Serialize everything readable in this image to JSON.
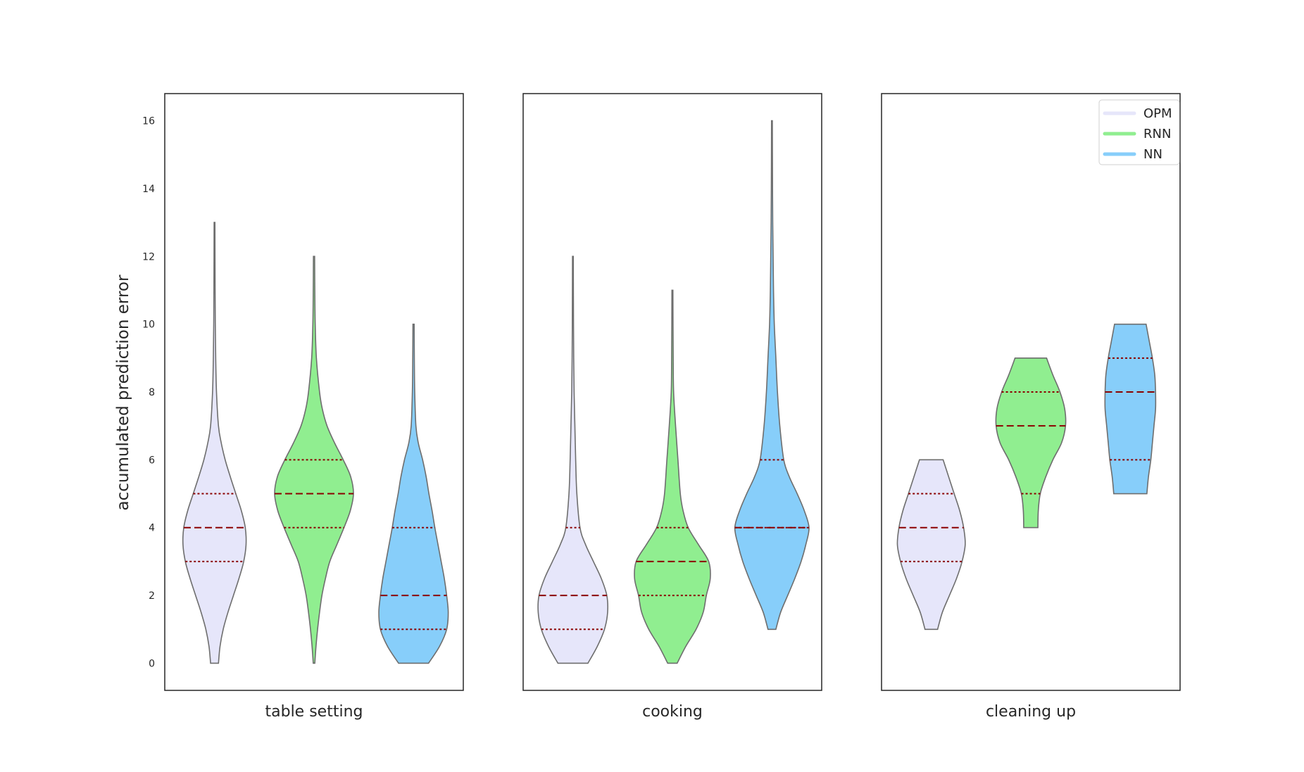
{
  "chart_data": {
    "type": "violin",
    "ylabel": "accumulated prediction error",
    "ylim": [
      -0.8,
      16.8
    ],
    "y_ticks": [
      0,
      2,
      4,
      6,
      8,
      10,
      12,
      14,
      16
    ],
    "grid": false,
    "legend": {
      "placement": "top-right",
      "entries": [
        {
          "name": "OPM",
          "color": "#e6e6fa"
        },
        {
          "name": "RNN",
          "color": "#90ee90"
        },
        {
          "name": "NN",
          "color": "#87cefa"
        }
      ]
    },
    "colors": {
      "OPM": "#e6e6fa",
      "RNN": "#90ee90",
      "NN": "#87cefa",
      "outline": "#6e6e6e",
      "quartile_lines": "#8b0000"
    },
    "panels": [
      {
        "label": "table setting",
        "series": [
          {
            "name": "OPM",
            "min": 0,
            "q1": 3,
            "median": 4,
            "q3": 5,
            "max": 13,
            "density": [
              [
                0,
                0.1
              ],
              [
                0.5,
                0.14
              ],
              [
                1,
                0.22
              ],
              [
                1.5,
                0.34
              ],
              [
                2,
                0.48
              ],
              [
                2.5,
                0.62
              ],
              [
                3,
                0.74
              ],
              [
                3.5,
                0.8
              ],
              [
                4,
                0.78
              ],
              [
                4.5,
                0.68
              ],
              [
                5,
                0.54
              ],
              [
                5.5,
                0.4
              ],
              [
                6,
                0.27
              ],
              [
                6.5,
                0.17
              ],
              [
                7,
                0.1
              ],
              [
                8,
                0.05
              ],
              [
                9,
                0.03
              ],
              [
                10,
                0.02
              ],
              [
                11,
                0.015
              ],
              [
                12,
                0.012
              ],
              [
                13,
                0.01
              ]
            ]
          },
          {
            "name": "RNN",
            "min": 0,
            "q1": 4,
            "median": 5,
            "q3": 6,
            "max": 12,
            "density": [
              [
                0,
                0.02
              ],
              [
                0.5,
                0.05
              ],
              [
                1,
                0.09
              ],
              [
                1.5,
                0.14
              ],
              [
                2,
                0.2
              ],
              [
                2.5,
                0.29
              ],
              [
                3,
                0.4
              ],
              [
                3.5,
                0.58
              ],
              [
                4,
                0.76
              ],
              [
                4.5,
                0.92
              ],
              [
                5,
                1.0
              ],
              [
                5.5,
                0.93
              ],
              [
                6,
                0.74
              ],
              [
                6.5,
                0.52
              ],
              [
                7,
                0.33
              ],
              [
                7.5,
                0.21
              ],
              [
                8,
                0.14
              ],
              [
                9,
                0.06
              ],
              [
                10,
                0.03
              ],
              [
                11,
                0.02
              ],
              [
                12,
                0.015
              ]
            ]
          },
          {
            "name": "NN",
            "min": 0,
            "q1": 1,
            "median": 2,
            "q3": 4,
            "max": 10,
            "density": [
              [
                0,
                0.38
              ],
              [
                0.5,
                0.66
              ],
              [
                1,
                0.84
              ],
              [
                1.5,
                0.88
              ],
              [
                2,
                0.84
              ],
              [
                2.5,
                0.78
              ],
              [
                3,
                0.7
              ],
              [
                3.5,
                0.62
              ],
              [
                4,
                0.54
              ],
              [
                4.5,
                0.47
              ],
              [
                5,
                0.39
              ],
              [
                5.5,
                0.32
              ],
              [
                6,
                0.23
              ],
              [
                6.5,
                0.12
              ],
              [
                7,
                0.06
              ],
              [
                8,
                0.03
              ],
              [
                9,
                0.02
              ],
              [
                10,
                0.015
              ]
            ]
          }
        ]
      },
      {
        "label": "cooking",
        "series": [
          {
            "name": "OPM",
            "min": 0,
            "q1": 1,
            "median": 2,
            "q3": 4,
            "max": 12,
            "density": [
              [
                0,
                0.38
              ],
              [
                0.5,
                0.62
              ],
              [
                1,
                0.8
              ],
              [
                1.5,
                0.88
              ],
              [
                2,
                0.86
              ],
              [
                2.5,
                0.72
              ],
              [
                3,
                0.52
              ],
              [
                3.5,
                0.32
              ],
              [
                4,
                0.18
              ],
              [
                5,
                0.1
              ],
              [
                6,
                0.07
              ],
              [
                7,
                0.05
              ],
              [
                8,
                0.03
              ],
              [
                9,
                0.02
              ],
              [
                10,
                0.015
              ],
              [
                11,
                0.012
              ],
              [
                12,
                0.01
              ]
            ]
          },
          {
            "name": "RNN",
            "min": 0,
            "q1": 2,
            "median": 3,
            "q3": 4,
            "max": 11,
            "density": [
              [
                0,
                0.12
              ],
              [
                0.5,
                0.34
              ],
              [
                1,
                0.6
              ],
              [
                1.5,
                0.78
              ],
              [
                2,
                0.86
              ],
              [
                2.5,
                0.96
              ],
              [
                3,
                0.92
              ],
              [
                3.5,
                0.66
              ],
              [
                4,
                0.4
              ],
              [
                4.5,
                0.27
              ],
              [
                5,
                0.2
              ],
              [
                6,
                0.14
              ],
              [
                7,
                0.08
              ],
              [
                8,
                0.03
              ],
              [
                9,
                0.02
              ],
              [
                10,
                0.015
              ],
              [
                11,
                0.012
              ]
            ]
          },
          {
            "name": "NN",
            "min": 1,
            "q1": 4,
            "median": 4,
            "q3": 6,
            "max": 16,
            "density": [
              [
                1,
                0.1
              ],
              [
                1.5,
                0.22
              ],
              [
                2,
                0.4
              ],
              [
                2.5,
                0.58
              ],
              [
                3,
                0.74
              ],
              [
                3.5,
                0.86
              ],
              [
                4,
                0.94
              ],
              [
                4.5,
                0.82
              ],
              [
                5,
                0.64
              ],
              [
                5.5,
                0.44
              ],
              [
                6,
                0.3
              ],
              [
                7,
                0.2
              ],
              [
                8,
                0.14
              ],
              [
                9,
                0.1
              ],
              [
                10,
                0.06
              ],
              [
                11,
                0.04
              ],
              [
                12,
                0.03
              ],
              [
                13,
                0.02
              ],
              [
                14,
                0.015
              ],
              [
                15,
                0.012
              ],
              [
                16,
                0.01
              ]
            ]
          }
        ]
      },
      {
        "label": "cleaning up",
        "series": [
          {
            "name": "OPM",
            "min": 1,
            "q1": 3,
            "median": 4,
            "q3": 5,
            "max": 6,
            "density": [
              [
                1,
                0.16
              ],
              [
                1.5,
                0.28
              ],
              [
                2,
                0.46
              ],
              [
                2.5,
                0.64
              ],
              [
                3,
                0.78
              ],
              [
                3.5,
                0.86
              ],
              [
                4,
                0.82
              ],
              [
                4.5,
                0.72
              ],
              [
                5,
                0.58
              ],
              [
                5.5,
                0.44
              ],
              [
                6,
                0.3
              ]
            ]
          },
          {
            "name": "RNN",
            "min": 4,
            "q1": 5,
            "median": 7,
            "q3": 8,
            "max": 9,
            "density": [
              [
                4,
                0.18
              ],
              [
                4.5,
                0.19
              ],
              [
                5,
                0.24
              ],
              [
                5.5,
                0.38
              ],
              [
                6,
                0.56
              ],
              [
                6.5,
                0.78
              ],
              [
                7,
                0.88
              ],
              [
                7.5,
                0.86
              ],
              [
                8,
                0.74
              ],
              [
                8.5,
                0.56
              ],
              [
                9,
                0.4
              ]
            ]
          },
          {
            "name": "NN",
            "min": 5,
            "q1": 6,
            "median": 8,
            "q3": 9,
            "max": 10,
            "density": [
              [
                5,
                0.42
              ],
              [
                5.5,
                0.46
              ],
              [
                6,
                0.52
              ],
              [
                6.5,
                0.56
              ],
              [
                7,
                0.6
              ],
              [
                7.5,
                0.64
              ],
              [
                8,
                0.64
              ],
              [
                8.5,
                0.62
              ],
              [
                9,
                0.56
              ],
              [
                9.5,
                0.48
              ],
              [
                10,
                0.4
              ]
            ]
          }
        ]
      }
    ]
  }
}
